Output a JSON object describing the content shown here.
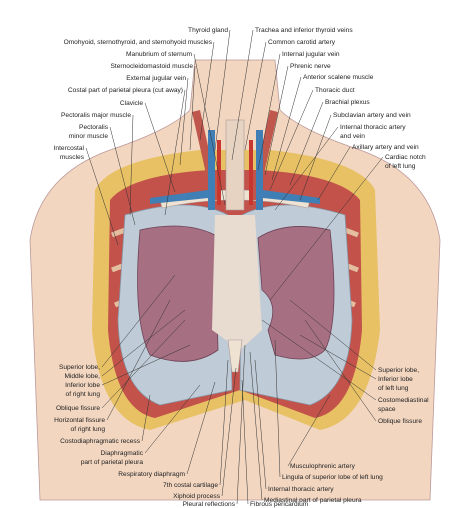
{
  "labels": [
    {
      "lines": [
        "Thyroid gland"
      ]
    },
    {
      "lines": [
        "Trachea and inferior thyroid veins"
      ]
    },
    {
      "lines": [
        "Omohyoid, sternothyroid, and sternohyoid muscles"
      ]
    },
    {
      "lines": [
        "Common carotid artery"
      ]
    },
    {
      "lines": [
        "Manubrium of sternum"
      ]
    },
    {
      "lines": [
        "Internal jugular vein"
      ]
    },
    {
      "lines": [
        "Sternocleidomastoid muscle"
      ]
    },
    {
      "lines": [
        "Phrenic nerve"
      ]
    },
    {
      "lines": [
        "External jugular vein"
      ]
    },
    {
      "lines": [
        "Anterior scalene muscle"
      ]
    },
    {
      "lines": [
        "Costal part of parietal pleura (cut away)"
      ]
    },
    {
      "lines": [
        "Thoracic duct"
      ]
    },
    {
      "lines": [
        "Clavicle"
      ]
    },
    {
      "lines": [
        "Brachial plexus"
      ]
    },
    {
      "lines": [
        "Pectoralis major muscle"
      ]
    },
    {
      "lines": [
        "Subclavian artery and vein"
      ]
    },
    {
      "lines": [
        "Pectoralis",
        "minor muscle"
      ]
    },
    {
      "lines": [
        "Internal thoracic artery",
        "and vein"
      ]
    },
    {
      "lines": [
        "Intercostal",
        "muscles"
      ]
    },
    {
      "lines": [
        "Axillary artery and vein"
      ]
    },
    {
      "lines": [
        "Cardiac notch",
        "of left lung"
      ]
    },
    {
      "lines": [
        "Superior lobe,",
        "Middle lobe,",
        "Inferior lobe",
        "of right lung"
      ]
    },
    {
      "lines": [
        "Oblique fissure"
      ]
    },
    {
      "lines": [
        "Horizontal fissure",
        "of right lung"
      ]
    },
    {
      "lines": [
        "Costodiaphragmatic recess"
      ]
    },
    {
      "lines": [
        "Diaphragmatic",
        "part of parietal pleura"
      ]
    },
    {
      "lines": [
        "Respiratory diaphragm"
      ]
    },
    {
      "lines": [
        "7th costal cartilage"
      ]
    },
    {
      "lines": [
        "Xiphoid process"
      ]
    },
    {
      "lines": [
        "Pleural reflections"
      ]
    },
    {
      "lines": [
        "Superior lobe,",
        "Inferior lobe",
        "of left lung"
      ]
    },
    {
      "lines": [
        "Costomediastinal",
        "space"
      ]
    },
    {
      "lines": [
        "Oblique fissure"
      ]
    },
    {
      "lines": [
        "Musculophrenic artery"
      ]
    },
    {
      "lines": [
        "Lingula of superior lobe of left lung"
      ]
    },
    {
      "lines": [
        "Internal thoracic artery"
      ]
    },
    {
      "lines": [
        "Mediastinal part of parietal pleura"
      ]
    },
    {
      "lines": [
        "Fibrous pericardium"
      ]
    }
  ]
}
